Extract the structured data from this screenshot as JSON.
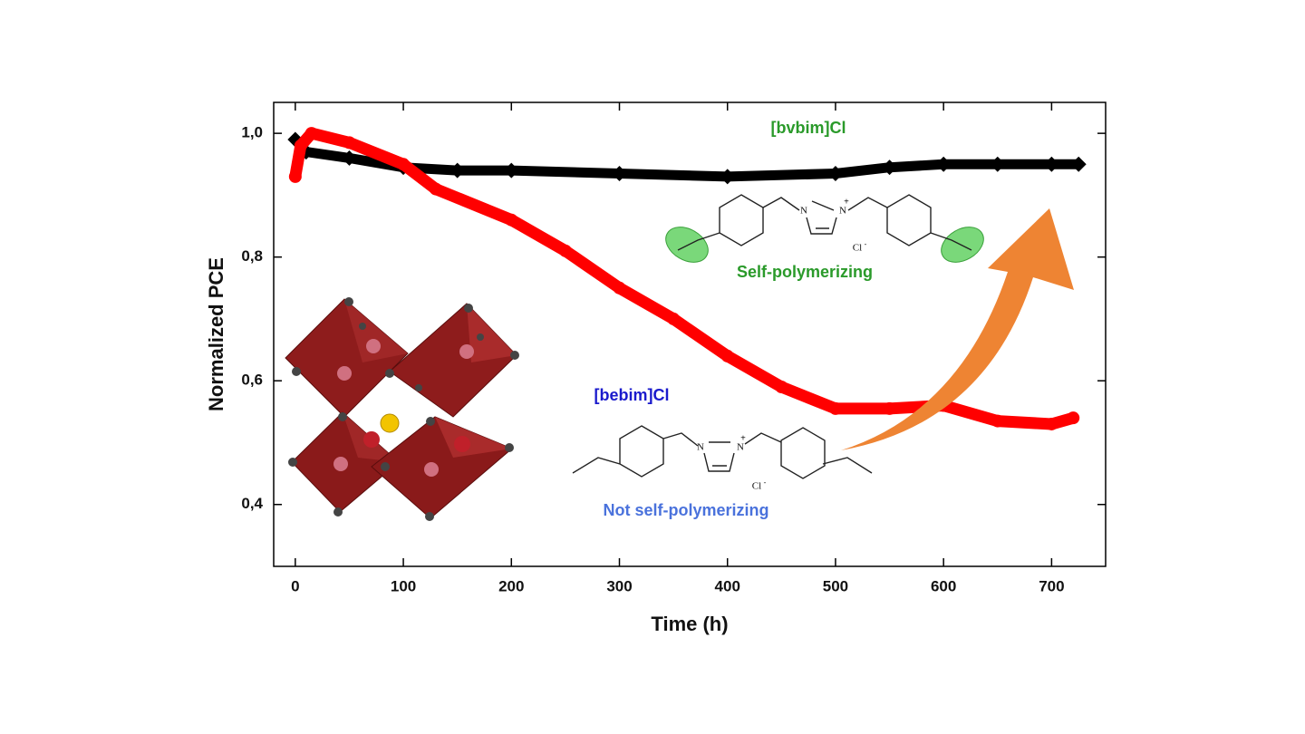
{
  "chart_data": {
    "type": "line",
    "x_label": "Time (h)",
    "y_label": "Normalized PCE",
    "xlim": [
      -20,
      750
    ],
    "xticks": [
      0,
      100,
      200,
      300,
      400,
      500,
      600,
      700
    ],
    "ylim": [
      0.3,
      1.05
    ],
    "yticks": [
      {
        "value": 0.4,
        "label": "0,4"
      },
      {
        "value": 0.6,
        "label": "0,6"
      },
      {
        "value": 0.8,
        "label": "0,8"
      },
      {
        "value": 1.0,
        "label": "1,0"
      }
    ],
    "series": [
      {
        "name": "[bvbim]Cl",
        "color": "#000000",
        "x": [
          0,
          10,
          50,
          100,
          150,
          200,
          300,
          400,
          500,
          550,
          600,
          650,
          700,
          725
        ],
        "values": [
          0.99,
          0.97,
          0.96,
          0.945,
          0.94,
          0.94,
          0.935,
          0.93,
          0.935,
          0.945,
          0.95,
          0.95,
          0.95,
          0.95
        ]
      },
      {
        "name": "[bebim]Cl",
        "color": "#ff0000",
        "x": [
          0,
          5,
          15,
          50,
          100,
          130,
          200,
          250,
          300,
          350,
          400,
          450,
          500,
          550,
          600,
          650,
          700,
          720
        ],
        "values": [
          0.93,
          0.98,
          1.0,
          0.985,
          0.95,
          0.91,
          0.86,
          0.81,
          0.75,
          0.7,
          0.64,
          0.59,
          0.555,
          0.555,
          0.56,
          0.535,
          0.53,
          0.54
        ]
      }
    ],
    "annotations": [
      "Self-polymerizing",
      "Not self-polymerizing"
    ],
    "molecule_labels": [
      "N",
      "N",
      "+",
      "Cl",
      "-",
      "N",
      "N",
      "+",
      "Cl",
      "-"
    ]
  }
}
